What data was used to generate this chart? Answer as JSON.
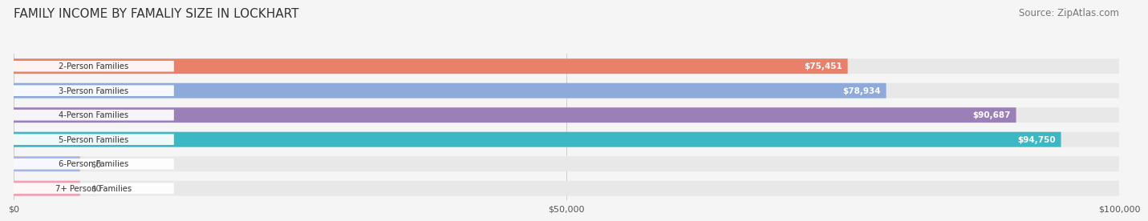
{
  "title": "FAMILY INCOME BY FAMALIY SIZE IN LOCKHART",
  "source": "Source: ZipAtlas.com",
  "categories": [
    "2-Person Families",
    "3-Person Families",
    "4-Person Families",
    "5-Person Families",
    "6-Person Families",
    "7+ Person Families"
  ],
  "values": [
    75451,
    78934,
    90687,
    94750,
    0,
    0
  ],
  "bar_colors": [
    "#E8806A",
    "#8EAADB",
    "#9B80B8",
    "#3BB8C3",
    "#A8B4E8",
    "#F0A0B0"
  ],
  "label_colors": [
    "#FFFFFF",
    "#FFFFFF",
    "#FFFFFF",
    "#FFFFFF",
    "#888888",
    "#888888"
  ],
  "value_labels": [
    "$75,451",
    "$78,934",
    "$90,687",
    "$94,750",
    "$0",
    "$0"
  ],
  "xmax": 100000,
  "xticks": [
    0,
    50000,
    100000
  ],
  "xticklabels": [
    "$0",
    "$50,000",
    "$100,000"
  ],
  "background_color": "#F5F5F5",
  "bar_bg_color": "#E8E8E8",
  "label_box_color": "#FFFFFF",
  "title_fontsize": 11,
  "source_fontsize": 8.5,
  "bar_height": 0.62,
  "figsize": [
    14.06,
    3.05
  ]
}
